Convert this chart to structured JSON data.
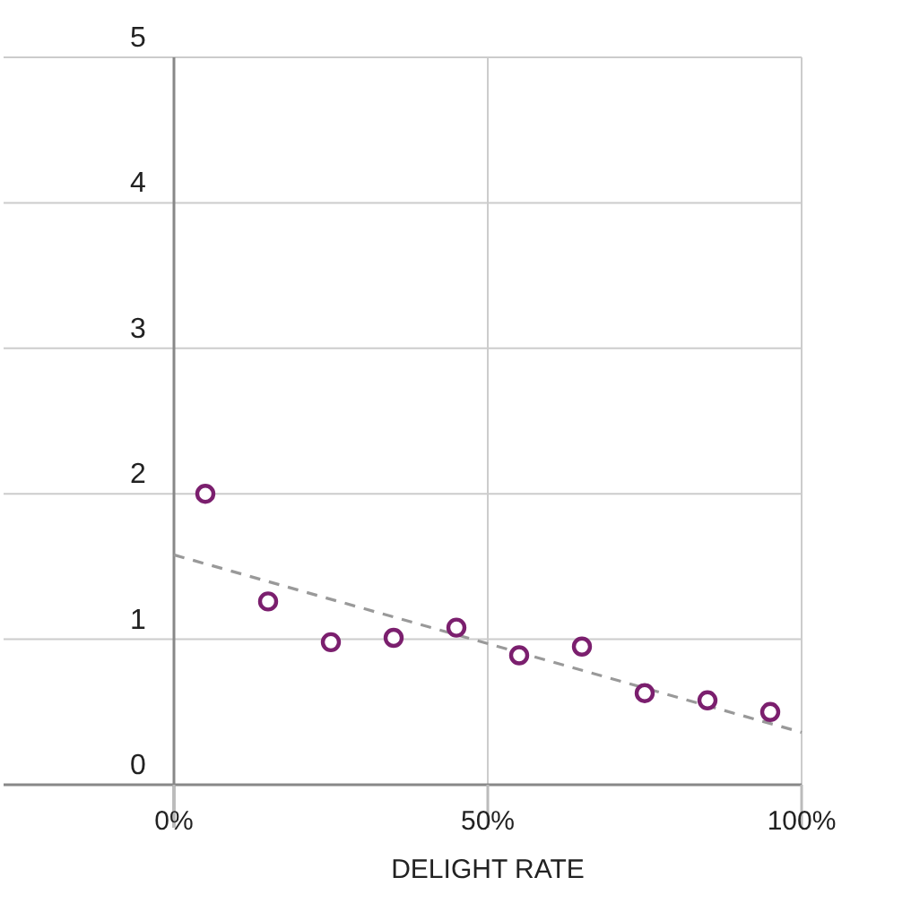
{
  "chart_data": {
    "type": "scatter",
    "xlabel": "DELIGHT RATE",
    "xlim": [
      0,
      100
    ],
    "xticks": [
      {
        "value": 0,
        "label": "0%"
      },
      {
        "value": 50,
        "label": "50%"
      },
      {
        "value": 100,
        "label": "100%"
      }
    ],
    "ylim": [
      0,
      5
    ],
    "yticks": [
      0,
      1,
      2,
      3,
      4,
      5
    ],
    "grid": true,
    "series": [
      {
        "marker": "circle",
        "color": "#7b1f6e",
        "x": [
          5,
          15,
          25,
          35,
          45,
          55,
          65,
          75,
          85,
          95
        ],
        "values": [
          2.0,
          1.26,
          0.98,
          1.01,
          1.08,
          0.89,
          0.95,
          0.63,
          0.58,
          0.5
        ]
      },
      {
        "type": "line",
        "color": "#999999",
        "line_style": "dashed",
        "x": [
          0,
          100
        ],
        "values": [
          1.58,
          0.36
        ]
      }
    ]
  }
}
